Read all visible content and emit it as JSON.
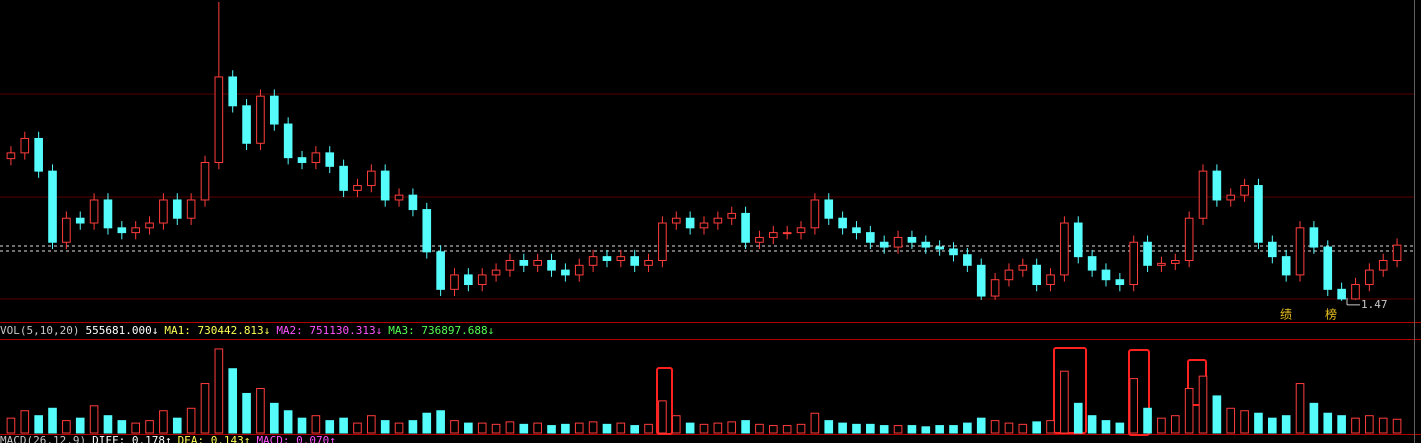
{
  "chart_data": {
    "type": "candlestick",
    "up_color": "#ff3c3c",
    "down_color": "#54fcfc",
    "ylim": [
      1.25,
      4.58
    ],
    "open": [
      2.95,
      3.01,
      3.16,
      2.82,
      2.08,
      2.33,
      2.28,
      2.52,
      2.23,
      2.18,
      2.23,
      2.28,
      2.52,
      2.33,
      2.52,
      2.91,
      3.8,
      3.5,
      3.11,
      3.6,
      3.31,
      2.96,
      2.91,
      3.01,
      2.87,
      2.62,
      2.67,
      2.82,
      2.52,
      2.57,
      2.42,
      1.98,
      1.59,
      1.74,
      1.64,
      1.74,
      1.79,
      1.89,
      1.84,
      1.89,
      1.79,
      1.74,
      1.84,
      1.93,
      1.89,
      1.93,
      1.84,
      1.89,
      2.28,
      2.33,
      2.23,
      2.28,
      2.33,
      2.38,
      2.08,
      2.13,
      2.18,
      2.18,
      2.23,
      2.52,
      2.33,
      2.23,
      2.18,
      2.08,
      2.03,
      2.13,
      2.08,
      2.03,
      2.01,
      1.95,
      1.84,
      1.52,
      1.69,
      1.79,
      1.84,
      1.64,
      1.74,
      2.28,
      1.93,
      1.79,
      1.69,
      1.64,
      2.08,
      1.84,
      1.86,
      1.89,
      2.33,
      2.82,
      2.52,
      2.57,
      2.67,
      2.08,
      1.93,
      1.74,
      2.23,
      2.03,
      1.59,
      1.49,
      1.64,
      1.79,
      1.89
    ],
    "high": [
      3.08,
      3.23,
      3.23,
      2.89,
      2.4,
      2.4,
      2.59,
      2.59,
      2.3,
      2.3,
      2.35,
      2.59,
      2.59,
      2.59,
      2.98,
      4.58,
      3.87,
      3.57,
      3.67,
      3.67,
      3.38,
      3.03,
      3.08,
      3.08,
      2.94,
      2.74,
      2.89,
      2.89,
      2.64,
      2.64,
      2.49,
      2.05,
      1.81,
      1.81,
      1.81,
      1.86,
      1.96,
      1.96,
      1.96,
      1.96,
      1.86,
      1.91,
      2.0,
      2.0,
      2.0,
      2.0,
      1.96,
      2.35,
      2.4,
      2.4,
      2.35,
      2.4,
      2.45,
      2.45,
      2.2,
      2.25,
      2.25,
      2.3,
      2.59,
      2.59,
      2.4,
      2.3,
      2.25,
      2.15,
      2.2,
      2.2,
      2.15,
      2.1,
      2.08,
      2.02,
      1.91,
      1.76,
      1.86,
      1.91,
      1.91,
      1.81,
      2.35,
      2.35,
      2.0,
      1.86,
      1.76,
      2.15,
      2.15,
      1.93,
      1.96,
      2.4,
      2.89,
      2.89,
      2.64,
      2.74,
      2.74,
      2.15,
      2.0,
      2.3,
      2.3,
      2.1,
      1.66,
      1.71,
      1.86,
      1.96,
      2.12
    ],
    "low": [
      2.88,
      2.94,
      2.75,
      2.01,
      2.01,
      2.21,
      2.21,
      2.16,
      2.11,
      2.11,
      2.16,
      2.21,
      2.26,
      2.26,
      2.45,
      2.84,
      3.43,
      3.04,
      3.04,
      3.24,
      2.89,
      2.84,
      2.84,
      2.8,
      2.55,
      2.55,
      2.6,
      2.45,
      2.45,
      2.35,
      1.91,
      1.52,
      1.52,
      1.57,
      1.57,
      1.67,
      1.72,
      1.77,
      1.77,
      1.72,
      1.67,
      1.67,
      1.77,
      1.82,
      1.82,
      1.77,
      1.77,
      1.82,
      2.21,
      2.16,
      2.16,
      2.21,
      2.26,
      2.01,
      2.01,
      2.06,
      2.11,
      2.11,
      2.16,
      2.26,
      2.16,
      2.11,
      2.01,
      1.96,
      1.96,
      2.01,
      1.96,
      1.94,
      1.88,
      1.77,
      1.48,
      1.48,
      1.62,
      1.72,
      1.57,
      1.57,
      1.67,
      1.86,
      1.72,
      1.62,
      1.57,
      1.57,
      1.77,
      1.77,
      1.79,
      1.82,
      2.26,
      2.45,
      2.45,
      2.5,
      2.01,
      1.86,
      1.67,
      1.67,
      1.96,
      1.52,
      1.47,
      1.48,
      1.57,
      1.72,
      1.82
    ],
    "close": [
      3.01,
      3.16,
      2.82,
      2.08,
      2.33,
      2.28,
      2.52,
      2.23,
      2.18,
      2.23,
      2.28,
      2.52,
      2.33,
      2.52,
      2.91,
      3.8,
      3.5,
      3.11,
      3.6,
      3.31,
      2.96,
      2.91,
      3.01,
      2.87,
      2.62,
      2.67,
      2.82,
      2.52,
      2.57,
      2.42,
      1.98,
      1.59,
      1.74,
      1.64,
      1.74,
      1.79,
      1.89,
      1.84,
      1.89,
      1.79,
      1.74,
      1.84,
      1.93,
      1.89,
      1.93,
      1.84,
      1.89,
      2.28,
      2.33,
      2.23,
      2.28,
      2.33,
      2.38,
      2.08,
      2.13,
      2.18,
      2.18,
      2.23,
      2.52,
      2.33,
      2.23,
      2.18,
      2.08,
      2.03,
      2.13,
      2.08,
      2.03,
      2.01,
      1.95,
      1.84,
      1.52,
      1.69,
      1.79,
      1.84,
      1.64,
      1.74,
      2.28,
      1.93,
      1.79,
      1.69,
      1.64,
      2.08,
      1.84,
      1.86,
      1.89,
      2.33,
      2.82,
      2.52,
      2.57,
      2.67,
      2.08,
      1.93,
      1.74,
      2.23,
      2.03,
      1.59,
      1.49,
      1.64,
      1.79,
      1.89,
      2.05
    ],
    "low_marker": 1.47,
    "annotations": [
      "绩",
      "榜"
    ],
    "volume": {
      "type": "bar",
      "ylim": [
        0,
        3600000
      ],
      "values": [
        600000,
        900000,
        700000,
        1000000,
        500000,
        600000,
        1100000,
        700000,
        500000,
        400000,
        500000,
        900000,
        600000,
        1000000,
        2000000,
        3400000,
        2600000,
        1600000,
        1800000,
        1200000,
        900000,
        600000,
        700000,
        500000,
        600000,
        400000,
        700000,
        500000,
        400000,
        500000,
        800000,
        900000,
        500000,
        400000,
        400000,
        350000,
        450000,
        350000,
        400000,
        300000,
        350000,
        400000,
        450000,
        350000,
        400000,
        300000,
        350000,
        1300000,
        700000,
        400000,
        350000,
        400000,
        450000,
        500000,
        350000,
        300000,
        300000,
        350000,
        800000,
        500000,
        400000,
        350000,
        350000,
        300000,
        300000,
        300000,
        250000,
        300000,
        300000,
        400000,
        600000,
        500000,
        400000,
        350000,
        450000,
        500000,
        2500000,
        1200000,
        700000,
        500000,
        400000,
        2200000,
        1000000,
        600000,
        700000,
        1800000,
        2300000,
        1500000,
        1000000,
        900000,
        800000,
        600000,
        700000,
        2000000,
        1200000,
        800000,
        700000,
        600000,
        700000,
        600000,
        555681
      ],
      "legend": [
        {
          "text": "VOL(5,10,20)",
          "color": "#c8c8c8"
        },
        {
          "text": "555681.000↓",
          "color": "#ffffff"
        },
        {
          "text": "MA1: 730442.813↓",
          "color": "#ffff54"
        },
        {
          "text": "MA2: 751130.313↓",
          "color": "#ff54ff"
        },
        {
          "text": "MA3: 736897.688↓",
          "color": "#54ff54"
        }
      ]
    },
    "macd_legend": [
      {
        "text": "MACD(26,12,9)",
        "color": "#c8c8c8"
      },
      {
        "text": "DIFF: 0.178↑",
        "color": "#ffffff"
      },
      {
        "text": "DEA: 0.143↑",
        "color": "#ffff54"
      },
      {
        "text": "MACD: 0.070↑",
        "color": "#ff54ff"
      }
    ]
  }
}
